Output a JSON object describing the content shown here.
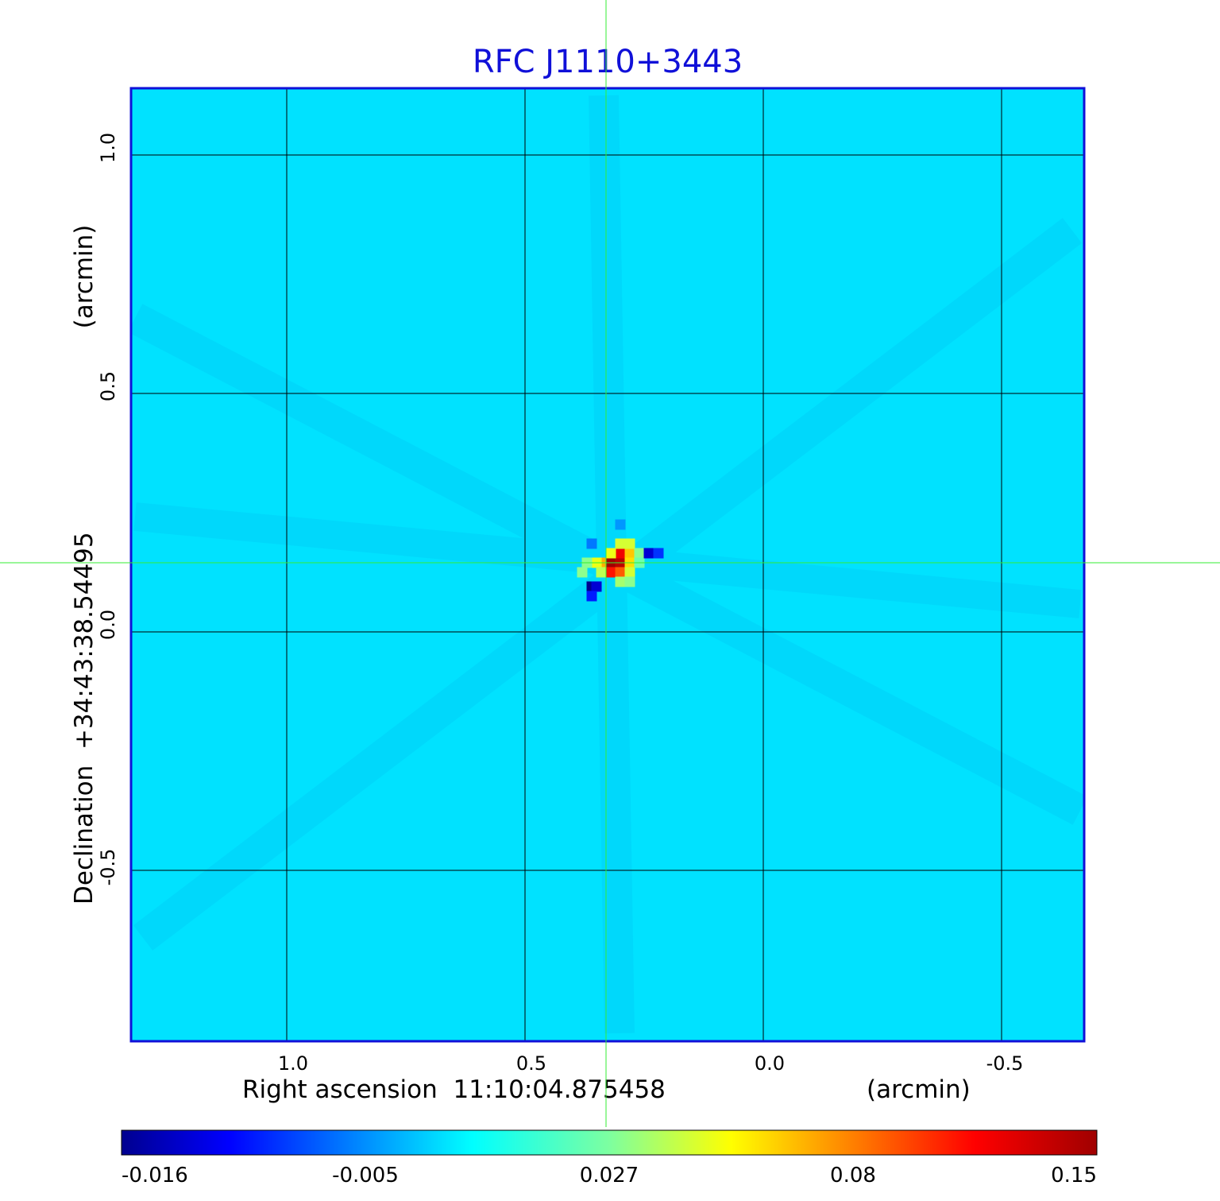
{
  "chart_data": {
    "type": "heatmap",
    "title": "RFC J1110+3443",
    "xlabel": "Right ascension  11:10:04.875458",
    "xunit": "(arcmin)",
    "ylabel": "Declination  +34:43:38.54495",
    "yunit": "(arcmin)",
    "xlim": [
      1.33,
      -0.67
    ],
    "ylim": [
      -0.85,
      1.14
    ],
    "x_ticks": [
      {
        "value": 1.0,
        "label": "1.0"
      },
      {
        "value": 0.5,
        "label": "0.5"
      },
      {
        "value": 0.0,
        "label": "0.0"
      },
      {
        "value": -0.5,
        "label": "-0.5"
      }
    ],
    "y_ticks": [
      {
        "value": 1.0,
        "label": "1.0"
      },
      {
        "value": 0.5,
        "label": "0.5"
      },
      {
        "value": 0.0,
        "label": "0.0"
      },
      {
        "value": -0.5,
        "label": "-0.5"
      }
    ],
    "grid": true,
    "colormap": "jet",
    "background_value": 0.0,
    "colorbar": {
      "ticks": [
        "-0.016",
        "-0.005",
        "0.027",
        "0.08",
        "0.15"
      ],
      "min": -0.016,
      "max": 0.15
    },
    "crosshair": {
      "x": 0.33,
      "y": 0.145,
      "color": "#33ee33"
    },
    "peak": {
      "x": 0.31,
      "y": 0.15,
      "value": 0.15
    },
    "bright_pixels": [
      {
        "x": 0.32,
        "y": 0.145,
        "value": 0.15
      },
      {
        "x": 0.3,
        "y": 0.145,
        "value": 0.14
      },
      {
        "x": 0.3,
        "y": 0.165,
        "value": 0.12
      },
      {
        "x": 0.32,
        "y": 0.125,
        "value": 0.11
      },
      {
        "x": 0.3,
        "y": 0.125,
        "value": 0.09
      },
      {
        "x": 0.34,
        "y": 0.145,
        "value": 0.07
      },
      {
        "x": 0.28,
        "y": 0.165,
        "value": 0.065
      },
      {
        "x": 0.28,
        "y": 0.145,
        "value": 0.06
      },
      {
        "x": 0.35,
        "y": 0.145,
        "value": 0.05
      },
      {
        "x": 0.32,
        "y": 0.165,
        "value": 0.05
      },
      {
        "x": 0.28,
        "y": 0.185,
        "value": 0.045
      },
      {
        "x": 0.3,
        "y": 0.185,
        "value": 0.045
      },
      {
        "x": 0.28,
        "y": 0.125,
        "value": 0.045
      },
      {
        "x": 0.34,
        "y": 0.125,
        "value": 0.04
      },
      {
        "x": 0.3,
        "y": 0.105,
        "value": 0.035
      },
      {
        "x": 0.37,
        "y": 0.145,
        "value": 0.03
      },
      {
        "x": 0.38,
        "y": 0.125,
        "value": 0.03
      },
      {
        "x": 0.28,
        "y": 0.105,
        "value": 0.03
      },
      {
        "x": 0.26,
        "y": 0.165,
        "value": 0.03
      },
      {
        "x": 0.26,
        "y": 0.145,
        "value": 0.025
      },
      {
        "x": 0.36,
        "y": 0.095,
        "value": -0.016
      },
      {
        "x": 0.35,
        "y": 0.095,
        "value": -0.013
      },
      {
        "x": 0.24,
        "y": 0.165,
        "value": -0.013
      },
      {
        "x": 0.36,
        "y": 0.075,
        "value": -0.01
      },
      {
        "x": 0.22,
        "y": 0.165,
        "value": -0.009
      },
      {
        "x": 0.36,
        "y": 0.185,
        "value": -0.006
      },
      {
        "x": 0.3,
        "y": 0.225,
        "value": -0.004
      }
    ]
  }
}
